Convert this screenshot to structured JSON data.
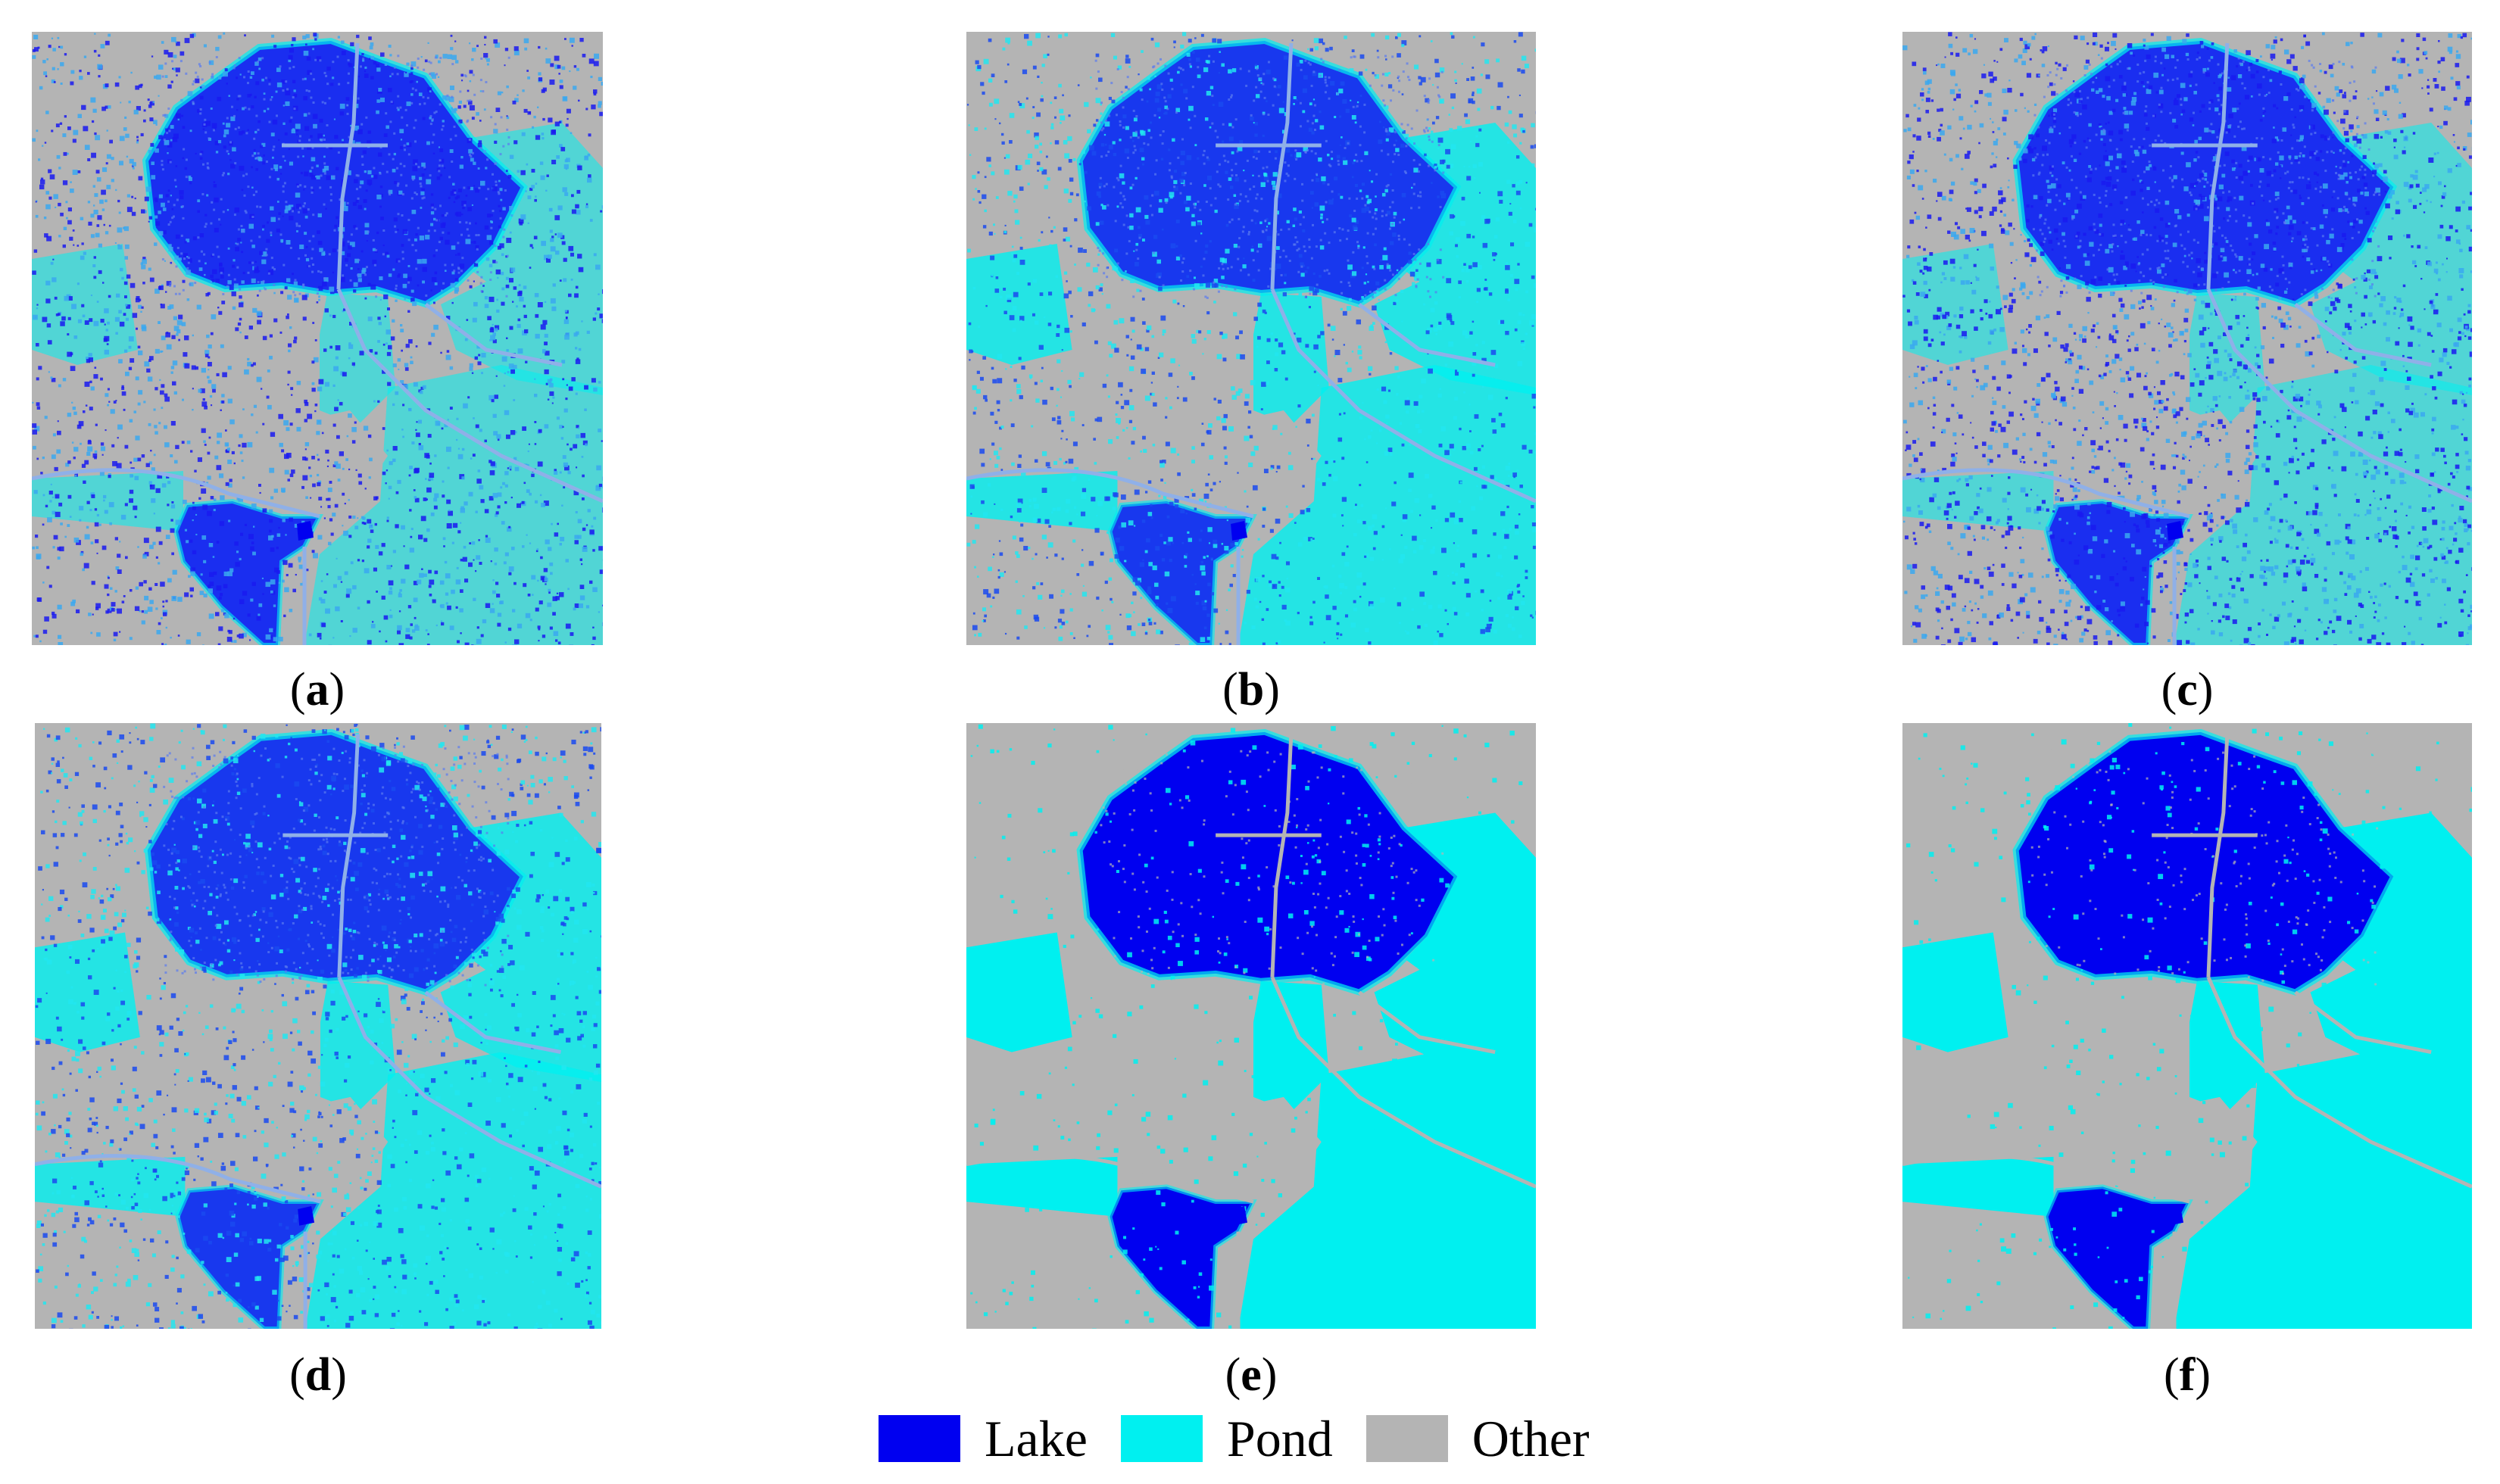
{
  "panels": [
    {
      "label": "a",
      "style": "mixed-speckle"
    },
    {
      "label": "b",
      "style": "pond-dominant-speckle"
    },
    {
      "label": "c",
      "style": "mixed-speckle"
    },
    {
      "label": "d",
      "style": "pond-dominant-speckle"
    },
    {
      "label": "e",
      "style": "clean-segmentation"
    },
    {
      "label": "f",
      "style": "clean-segmentation"
    }
  ],
  "legend": [
    {
      "label": "Lake",
      "color": "#0000f0"
    },
    {
      "label": "Pond",
      "color": "#00f0f0"
    },
    {
      "label": "Other",
      "color": "#b4b4b4"
    }
  ],
  "colors": {
    "background": "#b4b4b4",
    "lake": "#0000f0",
    "pond": "#00f0f0"
  }
}
